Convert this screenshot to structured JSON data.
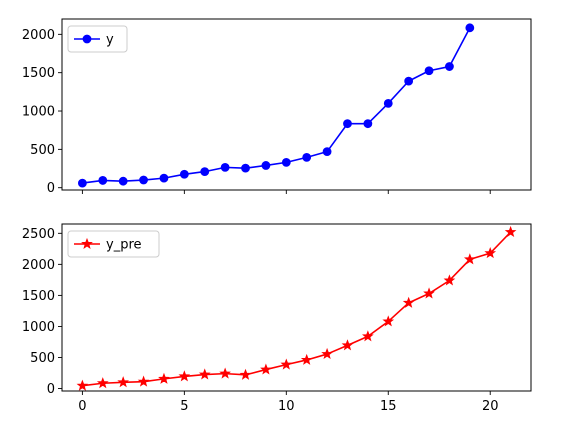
{
  "chart_data": [
    {
      "type": "line",
      "x": [
        0,
        1,
        2,
        3,
        4,
        5,
        6,
        7,
        8,
        9,
        10,
        11,
        12,
        13,
        14,
        15,
        16,
        17,
        18,
        19
      ],
      "series": [
        {
          "name": "y",
          "color": "#0000ff",
          "marker": "circle",
          "values": [
            60,
            95,
            85,
            100,
            125,
            175,
            210,
            265,
            255,
            290,
            330,
            395,
            470,
            835,
            835,
            1100,
            1390,
            1525,
            1580,
            2085
          ]
        }
      ],
      "xlim": [
        -1,
        22
      ],
      "ylim": [
        -30,
        2200
      ],
      "yticks": [
        0,
        500,
        1000,
        1500,
        2000
      ],
      "xticks": [
        0,
        5,
        10,
        15,
        20
      ],
      "show_xtick_labels": false,
      "legend": "top-left",
      "grid": false,
      "title": "",
      "xlabel": "",
      "ylabel": ""
    },
    {
      "type": "line",
      "x": [
        0,
        1,
        2,
        3,
        4,
        5,
        6,
        7,
        8,
        9,
        10,
        11,
        12,
        13,
        14,
        15,
        16,
        17,
        18,
        19,
        20,
        21
      ],
      "series": [
        {
          "name": "y_pre",
          "color": "#ff0000",
          "marker": "star",
          "values": [
            45,
            85,
            100,
            110,
            155,
            195,
            225,
            240,
            220,
            305,
            385,
            460,
            555,
            695,
            840,
            1080,
            1380,
            1530,
            1740,
            2080,
            2180,
            2520
          ]
        }
      ],
      "xlim": [
        -1,
        22
      ],
      "ylim": [
        -40,
        2650
      ],
      "yticks": [
        0,
        500,
        1000,
        1500,
        2000,
        2500
      ],
      "xticks": [
        0,
        5,
        10,
        15,
        20
      ],
      "show_xtick_labels": true,
      "legend": "top-left",
      "grid": false,
      "title": "",
      "xlabel": "",
      "ylabel": ""
    }
  ]
}
